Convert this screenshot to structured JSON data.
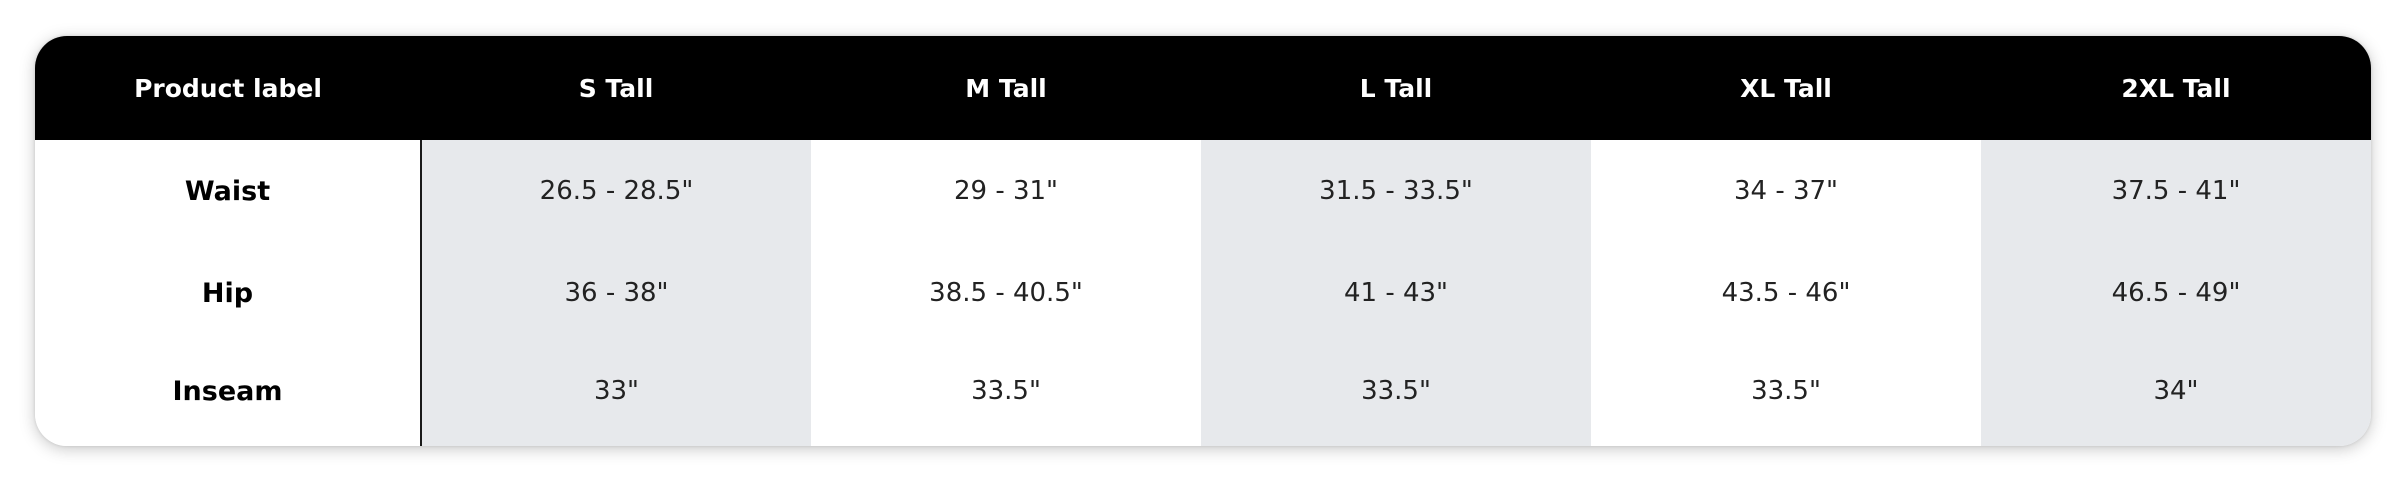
{
  "table": {
    "header_label": "Product label",
    "sizes": [
      "S Tall",
      "M Tall",
      "L Tall",
      "XL Tall",
      "2XL Tall"
    ],
    "rows": [
      {
        "label": "Waist",
        "values": [
          "26.5 - 28.5\"",
          "29 - 31\"",
          "31.5 - 33.5\"",
          "34 - 37\"",
          "37.5 - 41\""
        ]
      },
      {
        "label": "Hip",
        "values": [
          "36 - 38\"",
          "38.5 - 40.5\"",
          "41 - 43\"",
          "43.5 - 46\"",
          "46.5 - 49\""
        ]
      },
      {
        "label": "Inseam",
        "values": [
          "33\"",
          "33.5\"",
          "33.5\"",
          "33.5\"",
          "34\""
        ]
      }
    ]
  },
  "colors": {
    "header_background": "#000000",
    "header_text": "#ffffff",
    "shaded_column": "#e7e9ec",
    "divider": "#1a1a1a"
  }
}
